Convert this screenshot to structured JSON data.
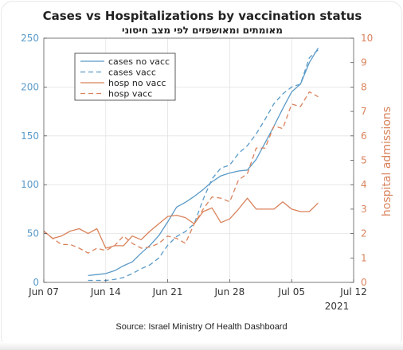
{
  "chart_data": {
    "type": "line",
    "title": "Cases vs Hospitalizations by vaccination status",
    "subtitle": "מאומתים ומאושפזים לפי מצב חיסוני",
    "xlabel": "",
    "ylabel_left": "",
    "ylabel_right": "hospital admissions",
    "x_ticks": [
      "Jun 07",
      "Jun 14",
      "Jun 21",
      "Jun 28",
      "Jul 05",
      "Jul 12"
    ],
    "x_year_label": "2021",
    "y_left_ticks": [
      "0",
      "50",
      "100",
      "150",
      "200",
      "250"
    ],
    "y_right_ticks": [
      "0",
      "1",
      "2",
      "3",
      "4",
      "5",
      "6",
      "7",
      "8",
      "9",
      "10"
    ],
    "ylim_left": [
      0,
      250
    ],
    "ylim_right": [
      0,
      10
    ],
    "grid": true,
    "legend_position": "upper-left",
    "colors": {
      "blue": "#5a9ac8",
      "orange": "#d9825b"
    },
    "series": [
      {
        "name": "cases no vacc",
        "axis": "left",
        "style": "solid",
        "color": "#5a9ac8",
        "points": [
          [
            "2021-06-12",
            7
          ],
          [
            "2021-06-13",
            8
          ],
          [
            "2021-06-14",
            9
          ],
          [
            "2021-06-15",
            12
          ],
          [
            "2021-06-16",
            17
          ],
          [
            "2021-06-17",
            21
          ],
          [
            "2021-06-18",
            30
          ],
          [
            "2021-06-19",
            38
          ],
          [
            "2021-06-20",
            48
          ],
          [
            "2021-06-21",
            62
          ],
          [
            "2021-06-22",
            77
          ],
          [
            "2021-06-23",
            82
          ],
          [
            "2021-06-24",
            88
          ],
          [
            "2021-06-25",
            95
          ],
          [
            "2021-06-26",
            103
          ],
          [
            "2021-06-27",
            109
          ],
          [
            "2021-06-28",
            112
          ],
          [
            "2021-06-29",
            114
          ],
          [
            "2021-06-30",
            115
          ],
          [
            "2021-07-01",
            126
          ],
          [
            "2021-07-02",
            143
          ],
          [
            "2021-07-03",
            160
          ],
          [
            "2021-07-04",
            178
          ],
          [
            "2021-07-05",
            195
          ],
          [
            "2021-07-06",
            203
          ],
          [
            "2021-07-07",
            225
          ],
          [
            "2021-07-08",
            240
          ]
        ]
      },
      {
        "name": "cases vacc",
        "axis": "left",
        "style": "dashed",
        "color": "#5a9ac8",
        "points": [
          [
            "2021-06-12",
            2
          ],
          [
            "2021-06-13",
            2
          ],
          [
            "2021-06-14",
            2
          ],
          [
            "2021-06-15",
            3
          ],
          [
            "2021-06-16",
            5
          ],
          [
            "2021-06-17",
            9
          ],
          [
            "2021-06-18",
            14
          ],
          [
            "2021-06-19",
            18
          ],
          [
            "2021-06-20",
            25
          ],
          [
            "2021-06-21",
            38
          ],
          [
            "2021-06-22",
            47
          ],
          [
            "2021-06-23",
            52
          ],
          [
            "2021-06-24",
            60
          ],
          [
            "2021-06-25",
            85
          ],
          [
            "2021-06-26",
            106
          ],
          [
            "2021-06-27",
            117
          ],
          [
            "2021-06-28",
            120
          ],
          [
            "2021-06-29",
            132
          ],
          [
            "2021-06-30",
            140
          ],
          [
            "2021-07-01",
            152
          ],
          [
            "2021-07-02",
            167
          ],
          [
            "2021-07-03",
            183
          ],
          [
            "2021-07-04",
            193
          ],
          [
            "2021-07-05",
            200
          ],
          [
            "2021-07-06",
            203
          ],
          [
            "2021-07-07",
            230
          ],
          [
            "2021-07-08",
            238
          ]
        ]
      },
      {
        "name": "hosp no vacc",
        "axis": "right",
        "style": "solid",
        "color": "#d9825b",
        "points": [
          [
            "2021-06-07",
            2.1
          ],
          [
            "2021-06-08",
            1.8
          ],
          [
            "2021-06-09",
            1.9
          ],
          [
            "2021-06-10",
            2.1
          ],
          [
            "2021-06-11",
            2.2
          ],
          [
            "2021-06-12",
            2.0
          ],
          [
            "2021-06-13",
            2.2
          ],
          [
            "2021-06-14",
            1.4
          ],
          [
            "2021-06-15",
            1.5
          ],
          [
            "2021-06-16",
            1.5
          ],
          [
            "2021-06-17",
            1.9
          ],
          [
            "2021-06-18",
            1.75
          ],
          [
            "2021-06-19",
            2.1
          ],
          [
            "2021-06-20",
            2.4
          ],
          [
            "2021-06-21",
            2.7
          ],
          [
            "2021-06-22",
            2.75
          ],
          [
            "2021-06-23",
            2.65
          ],
          [
            "2021-06-24",
            2.4
          ],
          [
            "2021-06-25",
            2.9
          ],
          [
            "2021-06-26",
            3.05
          ],
          [
            "2021-06-27",
            2.45
          ],
          [
            "2021-06-28",
            2.6
          ],
          [
            "2021-06-29",
            3.0
          ],
          [
            "2021-06-30",
            3.45
          ],
          [
            "2021-07-01",
            3.0
          ],
          [
            "2021-07-02",
            3.0
          ],
          [
            "2021-07-03",
            3.0
          ],
          [
            "2021-07-04",
            3.3
          ],
          [
            "2021-07-05",
            3.0
          ],
          [
            "2021-07-06",
            2.9
          ],
          [
            "2021-07-07",
            2.9
          ],
          [
            "2021-07-08",
            3.25
          ]
        ]
      },
      {
        "name": "hosp vacc",
        "axis": "right",
        "style": "dashed",
        "color": "#d9825b",
        "points": [
          [
            "2021-06-07",
            2.1
          ],
          [
            "2021-06-08",
            1.8
          ],
          [
            "2021-06-09",
            1.55
          ],
          [
            "2021-06-10",
            1.55
          ],
          [
            "2021-06-11",
            1.4
          ],
          [
            "2021-06-12",
            1.2
          ],
          [
            "2021-06-13",
            1.4
          ],
          [
            "2021-06-14",
            1.3
          ],
          [
            "2021-06-15",
            1.5
          ],
          [
            "2021-06-16",
            1.9
          ],
          [
            "2021-06-17",
            1.6
          ],
          [
            "2021-06-18",
            1.4
          ],
          [
            "2021-06-19",
            1.45
          ],
          [
            "2021-06-20",
            1.6
          ],
          [
            "2021-06-21",
            1.9
          ],
          [
            "2021-06-22",
            1.8
          ],
          [
            "2021-06-23",
            1.6
          ],
          [
            "2021-06-24",
            2.4
          ],
          [
            "2021-06-25",
            3.0
          ],
          [
            "2021-06-26",
            3.5
          ],
          [
            "2021-06-27",
            3.45
          ],
          [
            "2021-06-28",
            3.3
          ],
          [
            "2021-06-29",
            4.2
          ],
          [
            "2021-06-30",
            4.45
          ],
          [
            "2021-07-01",
            5.5
          ],
          [
            "2021-07-02",
            5.5
          ],
          [
            "2021-07-03",
            6.4
          ],
          [
            "2021-07-04",
            6.3
          ],
          [
            "2021-07-05",
            7.3
          ],
          [
            "2021-07-06",
            7.2
          ],
          [
            "2021-07-07",
            7.8
          ],
          [
            "2021-07-08",
            7.6
          ]
        ]
      }
    ]
  },
  "source_text": "Source: Israel Ministry Of Health Dashboard"
}
